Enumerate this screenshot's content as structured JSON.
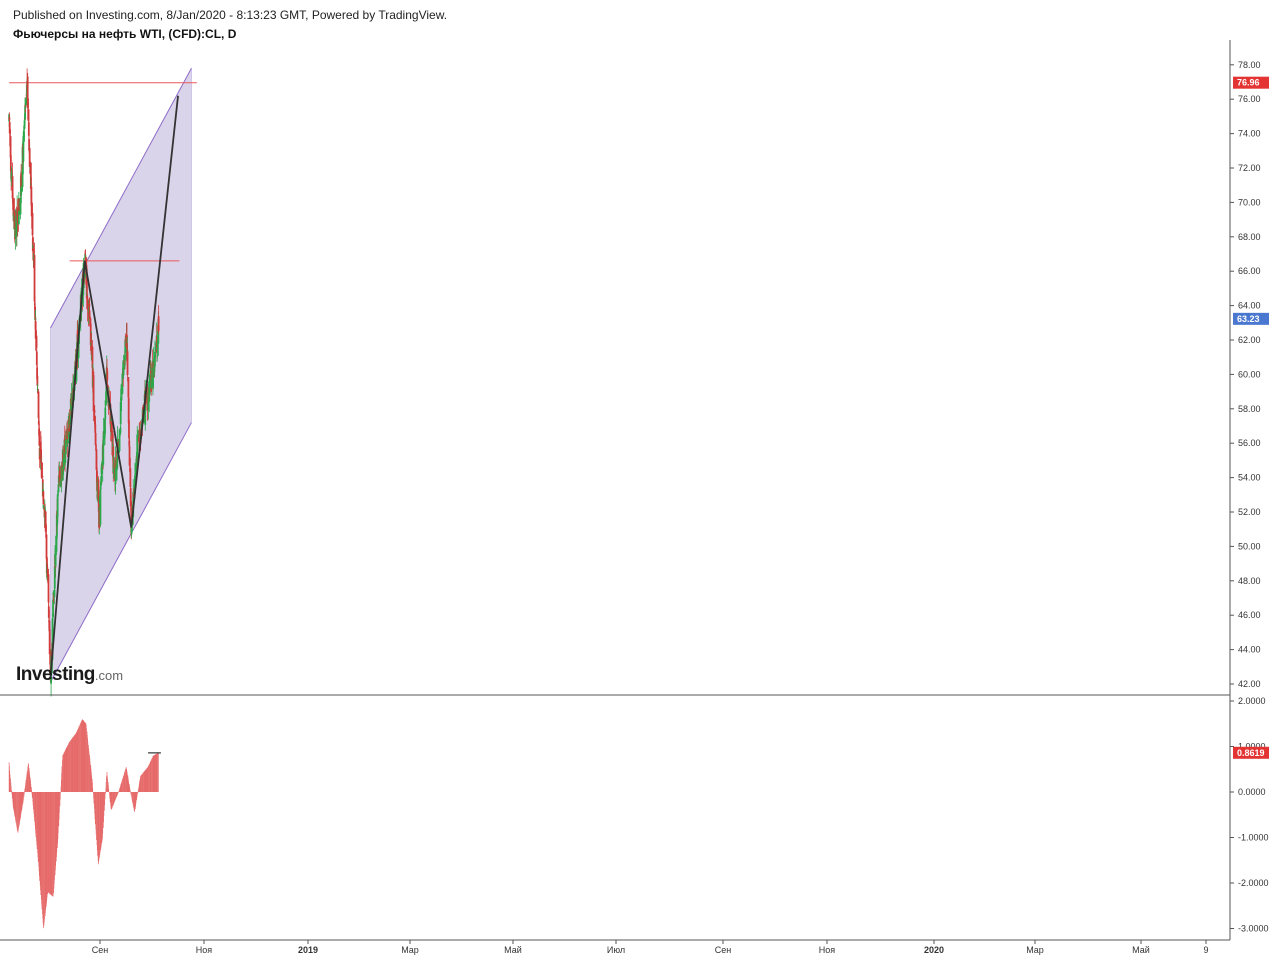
{
  "header": {
    "published": "Published on Investing.com, 8/Jan/2020 - 8:13:23 GMT, Powered by TradingView.",
    "title": "Фьючерсы на нефть WTI, (CFD):CL, D"
  },
  "logo": {
    "main": "Investing",
    "suffix": ".com"
  },
  "colors": {
    "channel_fill": "#d8d2ea",
    "channel_line": "#8e6bc8",
    "hline": "#e8595a",
    "bull": "#2aa84a",
    "bear": "#d23a3a",
    "zigzag": "#333333",
    "osc": "#e66a6a",
    "price_badge": "#4a78d0",
    "level_badge": "#e33333"
  },
  "chart_data": [
    {
      "type": "candlestick",
      "ylim": [
        41.5,
        78.5
      ],
      "y_ticks": [
        "78.00",
        "76.00",
        "74.00",
        "72.00",
        "70.00",
        "68.00",
        "66.00",
        "64.00",
        "62.00",
        "60.00",
        "58.00",
        "56.00",
        "54.00",
        "52.00",
        "50.00",
        "48.00",
        "46.00",
        "44.00",
        "42.00"
      ],
      "x_ticks": [
        "Сен",
        "Ноя",
        "2019",
        "Мар",
        "Май",
        "Июл",
        "Сен",
        "Ноя",
        "2020",
        "Мар",
        "Май",
        "9"
      ],
      "last_price": "63.23",
      "level_label": "76.96",
      "path_points": [
        [
          "2018-08-01",
          74.5
        ],
        [
          "2018-08-20",
          68.0
        ],
        [
          "2018-09-10",
          70.5
        ],
        [
          "2018-10-03",
          76.9
        ],
        [
          "2018-10-25",
          67.0
        ],
        [
          "2018-11-15",
          56.0
        ],
        [
          "2018-12-05",
          52.0
        ],
        [
          "2018-12-24",
          42.5
        ],
        [
          "2019-01-20",
          53.5
        ],
        [
          "2019-02-20",
          56.5
        ],
        [
          "2019-03-20",
          60.0
        ],
        [
          "2019-04-23",
          66.6
        ],
        [
          "2019-05-15",
          62.0
        ],
        [
          "2019-06-05",
          54.0
        ],
        [
          "2019-06-12",
          51.2
        ],
        [
          "2019-07-10",
          60.0
        ],
        [
          "2019-08-05",
          54.0
        ],
        [
          "2019-08-20",
          56.0
        ],
        [
          "2019-09-16",
          62.9
        ],
        [
          "2019-10-03",
          51.3
        ],
        [
          "2019-10-25",
          56.0
        ],
        [
          "2019-11-15",
          57.8
        ],
        [
          "2019-12-05",
          59.0
        ],
        [
          "2019-12-31",
          61.5
        ],
        [
          "2020-01-07",
          63.2
        ]
      ],
      "channel": {
        "upper": [
          [
            "2018-12-24",
            62.7
          ],
          [
            "2020-05-01",
            77.8
          ]
        ],
        "lower": [
          [
            "2018-12-24",
            42.1
          ],
          [
            "2020-05-01",
            57.2
          ]
        ]
      },
      "zigzag": [
        [
          "2018-12-24",
          42.4
        ],
        [
          "2019-04-23",
          66.6
        ],
        [
          "2019-10-03",
          51.1
        ],
        [
          "2020-03-15",
          76.2
        ]
      ],
      "hlines": [
        {
          "value": 76.96,
          "from": "2018-08-01",
          "to": "2020-05-20"
        },
        {
          "value": 66.6,
          "from": "2019-03-01",
          "to": "2020-03-20"
        }
      ]
    },
    {
      "type": "bar",
      "name": "oscillator",
      "ylim": [
        -3.1,
        2.1
      ],
      "y_ticks": [
        "2.0000",
        "1.0000",
        "0.0000",
        "-1.0000",
        "-2.0000",
        "-3.0000"
      ],
      "last_value": "0.8619",
      "path_points": [
        [
          "2018-08-01",
          0.65
        ],
        [
          "2018-08-15",
          -0.3
        ],
        [
          "2018-09-01",
          -0.9
        ],
        [
          "2018-09-20",
          -0.2
        ],
        [
          "2018-10-08",
          0.65
        ],
        [
          "2018-10-20",
          0.0
        ],
        [
          "2018-11-10",
          -1.4
        ],
        [
          "2018-11-30",
          -3.0
        ],
        [
          "2018-12-15",
          -2.2
        ],
        [
          "2019-01-03",
          -2.3
        ],
        [
          "2019-01-20",
          -1.0
        ],
        [
          "2019-02-05",
          0.8
        ],
        [
          "2019-03-01",
          1.1
        ],
        [
          "2019-03-25",
          1.3
        ],
        [
          "2019-04-15",
          1.6
        ],
        [
          "2019-04-28",
          1.5
        ],
        [
          "2019-05-20",
          0.25
        ],
        [
          "2019-06-10",
          -1.6
        ],
        [
          "2019-06-25",
          -1.0
        ],
        [
          "2019-07-10",
          0.45
        ],
        [
          "2019-07-25",
          -0.4
        ],
        [
          "2019-08-20",
          0.0
        ],
        [
          "2019-09-16",
          0.55
        ],
        [
          "2019-10-01",
          0.0
        ],
        [
          "2019-10-15",
          -0.45
        ],
        [
          "2019-11-05",
          0.35
        ],
        [
          "2019-12-01",
          0.55
        ],
        [
          "2019-12-20",
          0.8
        ],
        [
          "2020-01-07",
          0.86
        ]
      ],
      "level_mark": {
        "value": 0.86,
        "from": "2019-12-01",
        "to": "2020-01-15"
      }
    }
  ]
}
